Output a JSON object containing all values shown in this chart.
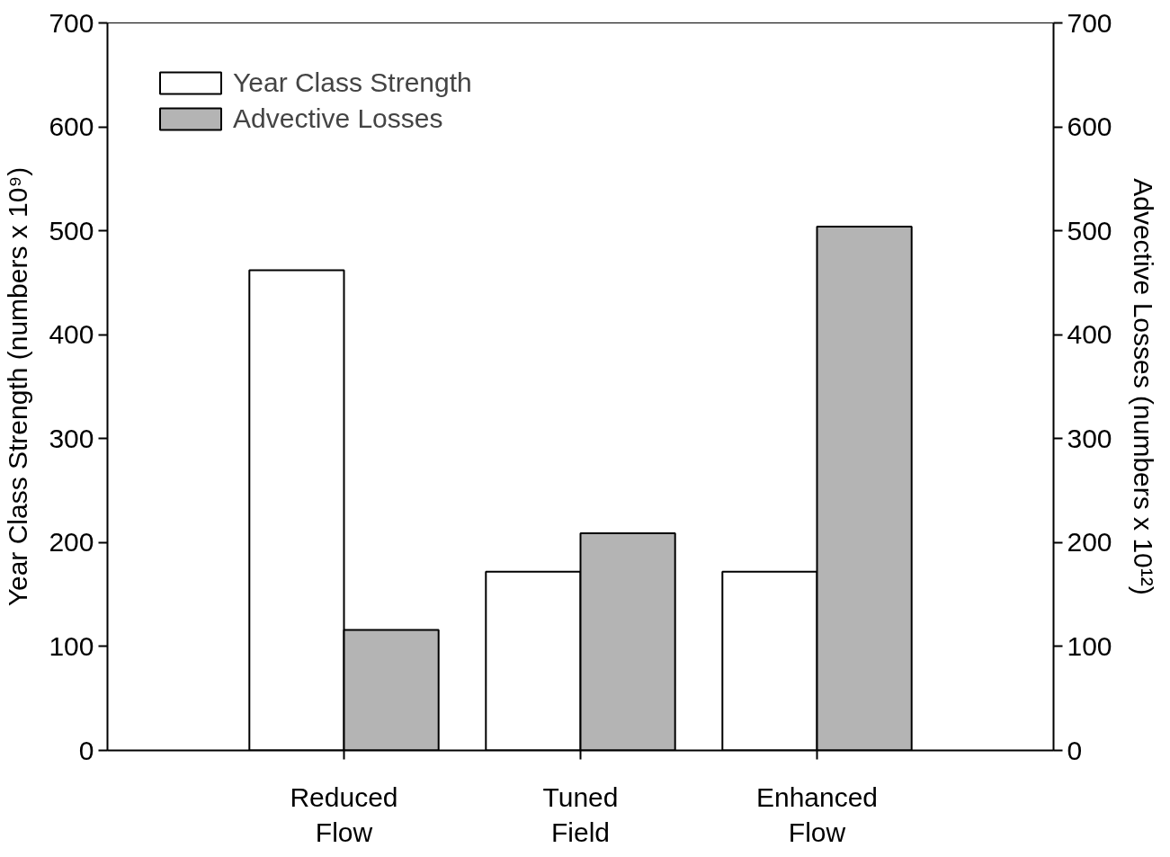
{
  "chart_data": {
    "type": "bar",
    "categories": [
      "Reduced Flow",
      "Tuned Field",
      "Enhanced Flow"
    ],
    "series": [
      {
        "name": "Year Class Strength",
        "color": "#ffffff",
        "values": [
          462,
          172,
          172
        ]
      },
      {
        "name": "Advective Losses",
        "color": "#b4b4b4",
        "values": [
          116,
          209,
          504
        ],
        "axis": "y2"
      }
    ],
    "ylabel": "Year Class Strength (numbers x 10⁹)",
    "y2label": "Advective Losses (numbers x 10¹²)",
    "ylim": [
      0,
      700
    ],
    "yticks": [
      0,
      100,
      200,
      300,
      400,
      500,
      600,
      700
    ],
    "y2lim": [
      0,
      700
    ],
    "y2ticks": [
      0,
      100,
      200,
      300,
      400,
      500,
      600,
      700
    ],
    "legend": "top left",
    "grid": false
  }
}
